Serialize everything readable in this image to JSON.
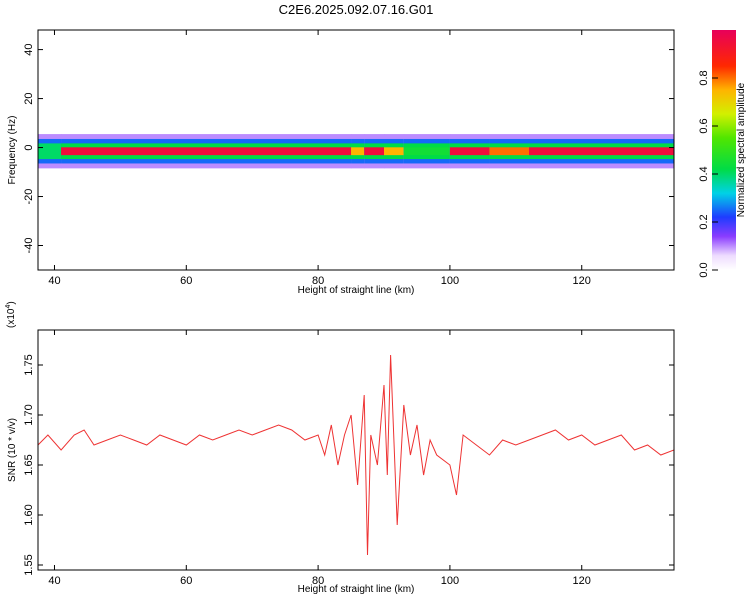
{
  "title": "C2E6.2025.092.07.16.G01",
  "chart_data": [
    {
      "type": "heatmap",
      "xlabel": "Height of straight line (km)",
      "ylabel": "Frequency (Hz)",
      "xlim": [
        37.5,
        134
      ],
      "ylim": [
        -50,
        48
      ],
      "xticks": [
        40,
        60,
        80,
        100,
        120
      ],
      "xtick_labels": [
        "40",
        "60",
        "80",
        "100",
        "120"
      ],
      "yticks": [
        -40,
        -20,
        0,
        20,
        40
      ],
      "ytick_labels": [
        "-40",
        "-20",
        "0",
        "20",
        "40"
      ],
      "colorbar": {
        "label": "Normalized spectral amplitude",
        "range": [
          0,
          1
        ],
        "ticks": [
          0,
          0.2,
          0.4,
          0.6,
          0.8
        ],
        "tick_labels": [
          "0.0",
          "0.2",
          "0.4",
          "0.6",
          "0.8"
        ]
      },
      "band": {
        "center_hz": -1.5,
        "segments": [
          {
            "x0": 37.5,
            "x1": 41,
            "core_amplitude": 0.4
          },
          {
            "x0": 41,
            "x1": 85,
            "core_amplitude": 0.95
          },
          {
            "x0": 85,
            "x1": 87,
            "core_amplitude": 0.75
          },
          {
            "x0": 87,
            "x1": 90,
            "core_amplitude": 0.95
          },
          {
            "x0": 90,
            "x1": 93,
            "core_amplitude": 0.75
          },
          {
            "x0": 93,
            "x1": 100,
            "core_amplitude": 0.45
          },
          {
            "x0": 100,
            "x1": 106,
            "core_amplitude": 0.95
          },
          {
            "x0": 106,
            "x1": 112,
            "core_amplitude": 0.8
          },
          {
            "x0": 112,
            "x1": 134,
            "core_amplitude": 0.95
          }
        ]
      }
    },
    {
      "type": "line",
      "xlabel": "Height of straight line (km)",
      "ylabel": "SNR (10 * v/v)",
      "ylabel_multiplier": "(x10^4)",
      "xlim": [
        37.5,
        134
      ],
      "ylim": [
        1.545,
        1.785
      ],
      "xticks": [
        40,
        60,
        80,
        100,
        120
      ],
      "xtick_labels": [
        "40",
        "60",
        "80",
        "100",
        "120"
      ],
      "yticks": [
        1.55,
        1.6,
        1.65,
        1.7,
        1.75
      ],
      "ytick_labels": [
        "1.55",
        "1.60",
        "1.65",
        "1.70",
        "1.75"
      ],
      "series": [
        {
          "color": "#ee3333",
          "x": [
            37.5,
            39,
            41,
            43,
            44.5,
            46,
            48,
            50,
            52,
            54,
            56,
            58,
            60,
            62,
            64,
            66,
            68,
            70,
            72,
            74,
            76,
            78,
            80,
            81,
            82,
            83,
            84,
            85,
            86,
            87,
            87.5,
            88,
            89,
            90,
            90.5,
            91,
            92,
            93,
            94,
            95,
            96,
            97,
            98,
            100,
            101,
            102,
            104,
            106,
            108,
            110,
            112,
            114,
            116,
            118,
            120,
            122,
            124,
            126,
            128,
            130,
            132,
            134
          ],
          "y": [
            1.67,
            1.68,
            1.665,
            1.68,
            1.685,
            1.67,
            1.675,
            1.68,
            1.675,
            1.67,
            1.68,
            1.675,
            1.67,
            1.68,
            1.675,
            1.68,
            1.685,
            1.68,
            1.685,
            1.69,
            1.685,
            1.675,
            1.68,
            1.66,
            1.69,
            1.65,
            1.68,
            1.7,
            1.63,
            1.72,
            1.56,
            1.68,
            1.65,
            1.73,
            1.64,
            1.76,
            1.59,
            1.71,
            1.66,
            1.69,
            1.64,
            1.675,
            1.66,
            1.65,
            1.62,
            1.68,
            1.67,
            1.66,
            1.675,
            1.67,
            1.675,
            1.68,
            1.685,
            1.675,
            1.68,
            1.67,
            1.675,
            1.68,
            1.665,
            1.67,
            1.66,
            1.665
          ]
        }
      ]
    }
  ]
}
